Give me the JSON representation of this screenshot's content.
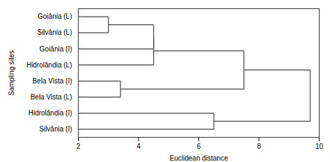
{
  "chart_data": {
    "type": "dendrogram",
    "xlabel": "Euclidean distance",
    "ylabel": "Sampling sites",
    "categories": [
      "Goiânia (L)",
      "Silvânia (L)",
      "Goiânia (I)",
      "Hidrolândia (L)",
      "Bela Vista (I)",
      "Bela Vista (L)",
      "Hidrolândia (I)",
      "Silvânia (I)"
    ],
    "merges": [
      {
        "left": [
          "Goiânia (L)"
        ],
        "right": [
          "Silvânia (L)"
        ],
        "distance": 3.0
      },
      {
        "left": [
          "Goiânia (L)",
          "Silvânia (L)"
        ],
        "right": [
          "Goiânia (I)"
        ],
        "distance": 4.5
      },
      {
        "left": [
          "Goiânia (L)",
          "Silvânia (L)",
          "Goiânia (I)"
        ],
        "right": [
          "Hidrolândia (L)"
        ],
        "distance": 4.5
      },
      {
        "left": [
          "Bela Vista (I)"
        ],
        "right": [
          "Bela Vista (L)"
        ],
        "distance": 3.4
      },
      {
        "left": [
          "Goiânia (L)",
          "Silvânia (L)",
          "Goiânia (I)",
          "Hidrolândia (L)"
        ],
        "right": [
          "Bela Vista (I)",
          "Bela Vista (L)"
        ],
        "distance": 7.5
      },
      {
        "left": [
          "Hidrolândia (I)"
        ],
        "right": [
          "Silvânia (I)"
        ],
        "distance": 6.5
      },
      {
        "left": [
          "Goiânia (L)",
          "Silvânia (L)",
          "Goiânia (I)",
          "Hidrolândia (L)",
          "Bela Vista (I)",
          "Bela Vista (L)"
        ],
        "right": [
          "Hidrolândia (I)",
          "Silvânia (I)"
        ],
        "distance": 9.7
      }
    ],
    "xlim": [
      2,
      10
    ],
    "xticks": [
      2,
      4,
      6,
      8,
      10
    ],
    "color": "#444444",
    "grid": false
  }
}
